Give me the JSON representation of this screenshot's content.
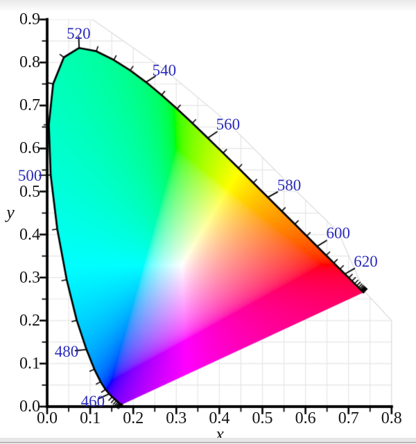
{
  "page": {
    "background": "#ffffff",
    "top_strip_color": "#e9e9e9",
    "bottom_strip_color": "#e7e7e7",
    "bottom_edge_color": "#b5b5b5"
  },
  "chart_data": {
    "type": "area",
    "diagram": "CIE 1931 xy chromaticity diagram",
    "xlabel": "x",
    "ylabel": "y",
    "xlim": [
      0,
      0.8
    ],
    "ylim": [
      0,
      0.9
    ],
    "x_tick_labels": [
      "0.0",
      "0.1",
      "0.2",
      "0.3",
      "0.4",
      "0.5",
      "0.6",
      "0.7",
      "0.8"
    ],
    "y_tick_labels": [
      "0.0",
      "0.1",
      "0.2",
      "0.3",
      "0.4",
      "0.5",
      "0.6",
      "0.7",
      "0.8",
      "0.9"
    ],
    "major_tick_step": 0.1,
    "minor_tick_step": 0.05,
    "grid": true,
    "grid_step": 0.05,
    "grid_color": "#e5e5e5",
    "boundary_color": "#dadada",
    "axis_color": "#000000",
    "locus_color": "#000000",
    "tick_label_color": "#141414",
    "wavelength_label_color": "#2b2bbe",
    "locus_tick_start_nm": 420,
    "locus_tick_step_nm": 5,
    "locus_tick_labeled_step_nm": 20,
    "wavelength_labels": [
      {
        "nm": 460,
        "x": 0.106,
        "y": 0.012
      },
      {
        "nm": 480,
        "x": 0.045,
        "y": 0.128
      },
      {
        "nm": 500,
        "x": -0.04,
        "y": 0.537
      },
      {
        "nm": 520,
        "x": 0.073,
        "y": 0.867
      },
      {
        "nm": 540,
        "x": 0.272,
        "y": 0.781
      },
      {
        "nm": 560,
        "x": 0.42,
        "y": 0.656
      },
      {
        "nm": 580,
        "x": 0.562,
        "y": 0.514
      },
      {
        "nm": 600,
        "x": 0.676,
        "y": 0.403
      },
      {
        "nm": 620,
        "x": 0.74,
        "y": 0.336
      }
    ],
    "grid_boundary": [
      [
        0.105,
        0.9
      ],
      [
        0.272,
        0.784
      ],
      [
        0.42,
        0.66
      ],
      [
        0.562,
        0.517
      ],
      [
        0.676,
        0.406
      ],
      [
        0.737,
        0.268
      ],
      [
        0.8,
        0.2
      ]
    ],
    "purple_line": [
      [
        0.1741,
        0.005
      ],
      [
        0.7347,
        0.2653
      ]
    ],
    "spectral_locus": [
      [
        380,
        0.1741,
        0.005
      ],
      [
        385,
        0.174,
        0.005
      ],
      [
        390,
        0.1738,
        0.0049
      ],
      [
        395,
        0.1736,
        0.0049
      ],
      [
        400,
        0.1733,
        0.0048
      ],
      [
        405,
        0.173,
        0.0048
      ],
      [
        410,
        0.1726,
        0.0048
      ],
      [
        415,
        0.1721,
        0.0048
      ],
      [
        420,
        0.1714,
        0.0051
      ],
      [
        425,
        0.1703,
        0.0058
      ],
      [
        430,
        0.1689,
        0.0069
      ],
      [
        435,
        0.1669,
        0.0086
      ],
      [
        440,
        0.1644,
        0.0109
      ],
      [
        445,
        0.1611,
        0.0138
      ],
      [
        450,
        0.1566,
        0.0177
      ],
      [
        455,
        0.151,
        0.0227
      ],
      [
        460,
        0.144,
        0.0297
      ],
      [
        465,
        0.1355,
        0.0399
      ],
      [
        470,
        0.1241,
        0.0578
      ],
      [
        475,
        0.1096,
        0.0868
      ],
      [
        480,
        0.0913,
        0.1327
      ],
      [
        485,
        0.0687,
        0.2007
      ],
      [
        490,
        0.0454,
        0.295
      ],
      [
        495,
        0.0235,
        0.4127
      ],
      [
        500,
        0.0082,
        0.5384
      ],
      [
        505,
        0.0039,
        0.6548
      ],
      [
        510,
        0.0139,
        0.7502
      ],
      [
        515,
        0.0389,
        0.812
      ],
      [
        520,
        0.0743,
        0.8338
      ],
      [
        525,
        0.1142,
        0.8262
      ],
      [
        530,
        0.1547,
        0.8059
      ],
      [
        535,
        0.1929,
        0.7816
      ],
      [
        540,
        0.2296,
        0.7543
      ],
      [
        545,
        0.2658,
        0.7243
      ],
      [
        550,
        0.3016,
        0.6923
      ],
      [
        555,
        0.3373,
        0.6589
      ],
      [
        560,
        0.3731,
        0.6245
      ],
      [
        565,
        0.4087,
        0.5896
      ],
      [
        570,
        0.4441,
        0.5547
      ],
      [
        575,
        0.4788,
        0.5202
      ],
      [
        580,
        0.5125,
        0.4866
      ],
      [
        585,
        0.5448,
        0.4544
      ],
      [
        590,
        0.5752,
        0.4242
      ],
      [
        595,
        0.6029,
        0.3965
      ],
      [
        600,
        0.627,
        0.3725
      ],
      [
        605,
        0.6482,
        0.3514
      ],
      [
        610,
        0.6658,
        0.334
      ],
      [
        615,
        0.6801,
        0.3197
      ],
      [
        620,
        0.6915,
        0.3083
      ],
      [
        625,
        0.7006,
        0.2993
      ],
      [
        630,
        0.7079,
        0.292
      ],
      [
        635,
        0.714,
        0.2859
      ],
      [
        640,
        0.719,
        0.2809
      ],
      [
        645,
        0.723,
        0.277
      ],
      [
        650,
        0.726,
        0.274
      ],
      [
        655,
        0.7283,
        0.2717
      ],
      [
        660,
        0.73,
        0.27
      ],
      [
        665,
        0.7311,
        0.2689
      ],
      [
        670,
        0.732,
        0.268
      ],
      [
        675,
        0.7327,
        0.2673
      ],
      [
        680,
        0.7334,
        0.2666
      ],
      [
        685,
        0.734,
        0.266
      ],
      [
        690,
        0.7344,
        0.2656
      ],
      [
        695,
        0.7346,
        0.2654
      ],
      [
        700,
        0.7347,
        0.2653
      ]
    ]
  }
}
